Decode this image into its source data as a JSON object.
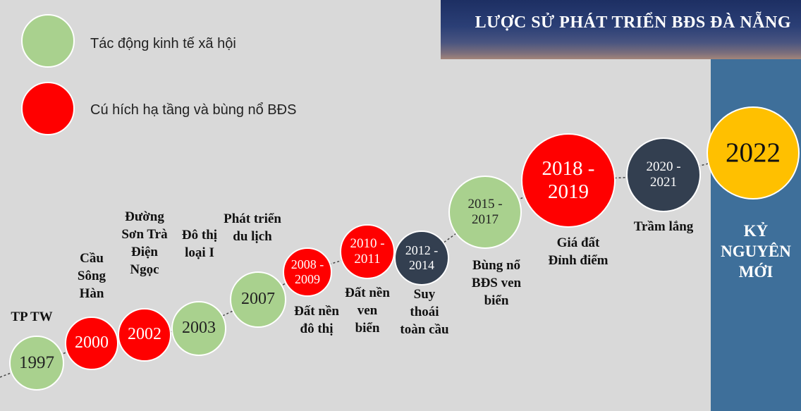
{
  "title": "LƯỢC SỬ PHÁT TRIỂN BĐS ĐÀ NẴNG",
  "legend": [
    {
      "label": "Tác động kinh tế xã hội",
      "color": "#a9d18e"
    },
    {
      "label": "Cú hích hạ tầng và bùng nổ BĐS",
      "color": "#ff0000"
    }
  ],
  "timeline": [
    {
      "year": "1997",
      "caption": "TP TW",
      "category": "social"
    },
    {
      "year": "2000",
      "caption": "Cầu Sông Hàn",
      "category": "infrastructure"
    },
    {
      "year": "2002",
      "caption": "Đường Sơn Trà Điện Ngọc",
      "category": "infrastructure"
    },
    {
      "year": "2003",
      "caption": "Đô thị loại I",
      "category": "social"
    },
    {
      "year": "2007",
      "caption": "Phát triển du lịch",
      "category": "social"
    },
    {
      "year": "2008 - 2009",
      "caption": "Đất nền đô thị",
      "category": "infrastructure"
    },
    {
      "year": "2010 - 2011",
      "caption": "Đất nền ven biển",
      "category": "infrastructure"
    },
    {
      "year": "2012 - 2014",
      "caption": "Suy thoái toàn cầu",
      "category": "downturn"
    },
    {
      "year": "2015 - 2017",
      "caption": "Bùng nổ BĐS ven biển",
      "category": "social"
    },
    {
      "year": "2018 - 2019",
      "caption": "Giá đất Đỉnh điểm",
      "category": "infrastructure"
    },
    {
      "year": "2020 - 2021",
      "caption": "Trầm lắng",
      "category": "downturn"
    },
    {
      "year": "2022",
      "caption": "KỶ NGUYÊN MỚI",
      "category": "new-era"
    }
  ],
  "colors": {
    "social": "#a9d18e",
    "infrastructure": "#ff0000",
    "downturn": "#333f50",
    "new-era": "#ffc000",
    "panel": "#3e6f9a"
  }
}
